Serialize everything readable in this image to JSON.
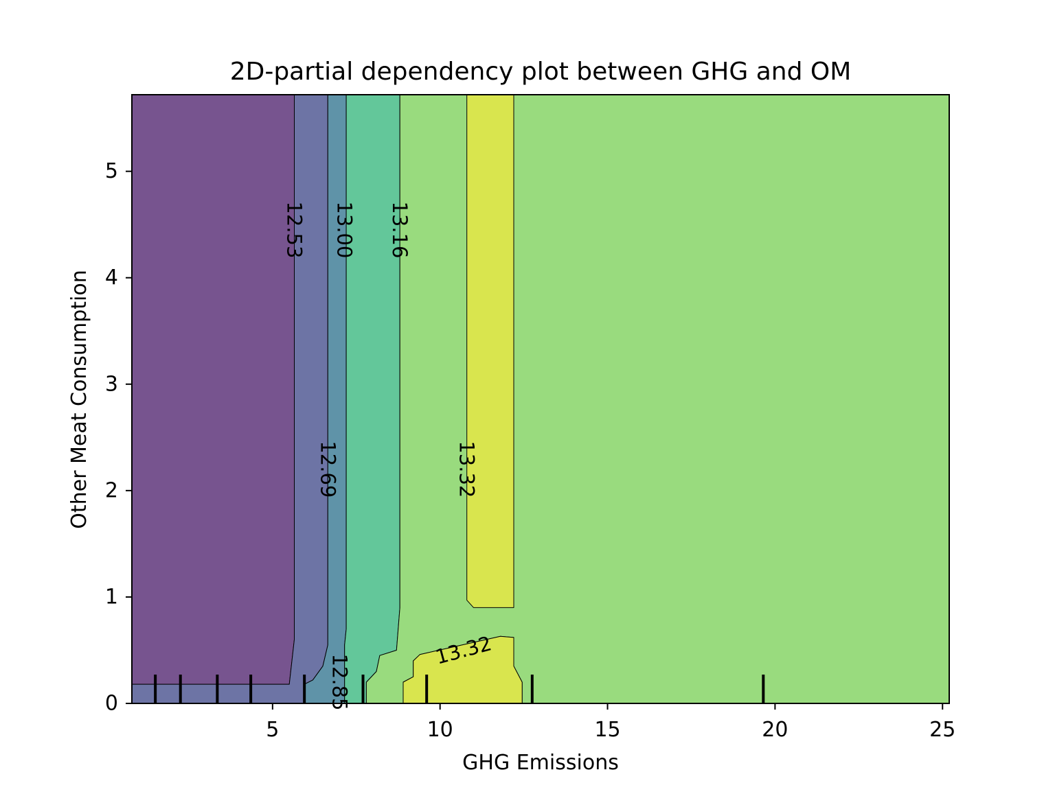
{
  "chart_data": {
    "type": "contour",
    "title": "2D-partial dependency plot between GHG and OM",
    "xlabel": "GHG Emissions",
    "ylabel": "Other Meat Consumption",
    "xlim": [
      0.8,
      25.2
    ],
    "ylim": [
      0,
      5.72
    ],
    "x_ticks": [
      5,
      10,
      15,
      20,
      25
    ],
    "y_ticks": [
      0,
      1,
      2,
      3,
      4,
      5
    ],
    "x_tick_labels": [
      "5",
      "10",
      "15",
      "20",
      "25"
    ],
    "y_tick_labels": [
      "0",
      "1",
      "2",
      "3",
      "4",
      "5"
    ],
    "levels": [
      {
        "value": 12.53,
        "color": "#77548f"
      },
      {
        "value": 12.69,
        "color": "#6d74a5"
      },
      {
        "value": 12.85,
        "color": "#5f93a8"
      },
      {
        "value": 13.0,
        "color": "#63c79a"
      },
      {
        "value": 13.16,
        "color": "#99db7e"
      },
      {
        "value": 13.32,
        "color": "#d9e54e"
      }
    ],
    "regions": [
      {
        "color": "#77548f",
        "points": [
          [
            0.8,
            5.72
          ],
          [
            5.65,
            5.72
          ],
          [
            5.65,
            0.6
          ],
          [
            5.5,
            0.18
          ],
          [
            0.8,
            0.18
          ]
        ]
      },
      {
        "color": "#6d74a5",
        "points": [
          [
            5.65,
            5.72
          ],
          [
            6.65,
            5.72
          ],
          [
            6.65,
            0.55
          ],
          [
            6.5,
            0.35
          ],
          [
            6.2,
            0.22
          ],
          [
            5.95,
            0.18
          ],
          [
            5.95,
            0
          ],
          [
            0.8,
            0
          ],
          [
            0.8,
            0.18
          ],
          [
            5.5,
            0.18
          ],
          [
            5.65,
            0.6
          ]
        ]
      },
      {
        "color": "#5f93a8",
        "points": [
          [
            6.65,
            5.72
          ],
          [
            7.2,
            5.72
          ],
          [
            7.2,
            0.7
          ],
          [
            7.15,
            0.55
          ],
          [
            7.15,
            0
          ],
          [
            5.95,
            0
          ],
          [
            5.95,
            0.18
          ],
          [
            6.2,
            0.22
          ],
          [
            6.5,
            0.35
          ],
          [
            6.65,
            0.55
          ]
        ]
      },
      {
        "color": "#63c79a",
        "points": [
          [
            7.2,
            5.72
          ],
          [
            8.8,
            5.72
          ],
          [
            8.8,
            0.9
          ],
          [
            8.7,
            0.5
          ],
          [
            8.2,
            0.45
          ],
          [
            8.1,
            0.3
          ],
          [
            7.8,
            0.2
          ],
          [
            7.8,
            0
          ],
          [
            7.15,
            0
          ],
          [
            7.15,
            0.55
          ],
          [
            7.2,
            0.7
          ]
        ]
      },
      {
        "color": "#99db7e",
        "points": [
          [
            8.8,
            5.72
          ],
          [
            25.2,
            5.72
          ],
          [
            25.2,
            0
          ],
          [
            12.45,
            0
          ],
          [
            12.45,
            0.2
          ],
          [
            12.2,
            0.35
          ],
          [
            12.2,
            0.62
          ],
          [
            11.8,
            0.63
          ],
          [
            9.4,
            0.46
          ],
          [
            9.2,
            0.4
          ],
          [
            9.2,
            0.25
          ],
          [
            8.9,
            0.2
          ],
          [
            8.9,
            0
          ],
          [
            7.8,
            0
          ],
          [
            7.8,
            0.2
          ],
          [
            8.1,
            0.3
          ],
          [
            8.2,
            0.45
          ],
          [
            8.7,
            0.5
          ],
          [
            8.8,
            0.9
          ]
        ]
      },
      {
        "color": "#d9e54e",
        "points": [
          [
            10.8,
            5.72
          ],
          [
            12.2,
            5.72
          ],
          [
            12.2,
            0.9
          ],
          [
            11.0,
            0.9
          ],
          [
            10.8,
            0.97
          ]
        ]
      },
      {
        "color": "#d9e54e",
        "points": [
          [
            8.9,
            0
          ],
          [
            12.45,
            0
          ],
          [
            12.45,
            0.2
          ],
          [
            12.2,
            0.35
          ],
          [
            12.2,
            0.62
          ],
          [
            11.8,
            0.63
          ],
          [
            9.4,
            0.46
          ],
          [
            9.2,
            0.4
          ],
          [
            9.2,
            0.25
          ],
          [
            8.9,
            0.2
          ]
        ]
      }
    ],
    "contour_labels": [
      {
        "text": "12.53",
        "x": 5.65,
        "y": 4.45,
        "rotation": 90
      },
      {
        "text": "13.00",
        "x": 7.15,
        "y": 4.45,
        "rotation": 90
      },
      {
        "text": "13.16",
        "x": 8.8,
        "y": 4.45,
        "rotation": 90
      },
      {
        "text": "12.69",
        "x": 6.65,
        "y": 2.2,
        "rotation": 90
      },
      {
        "text": "13.32",
        "x": 10.8,
        "y": 2.2,
        "rotation": 90
      },
      {
        "text": "13.32",
        "x": 10.7,
        "y": 0.5,
        "rotation": -15
      },
      {
        "text": "12.85",
        "x": 7.0,
        "y": 0.2,
        "rotation": 90
      }
    ],
    "rug_x": [
      1.5,
      2.25,
      3.35,
      4.35,
      5.95,
      7.7,
      9.6,
      12.75,
      19.65
    ]
  }
}
